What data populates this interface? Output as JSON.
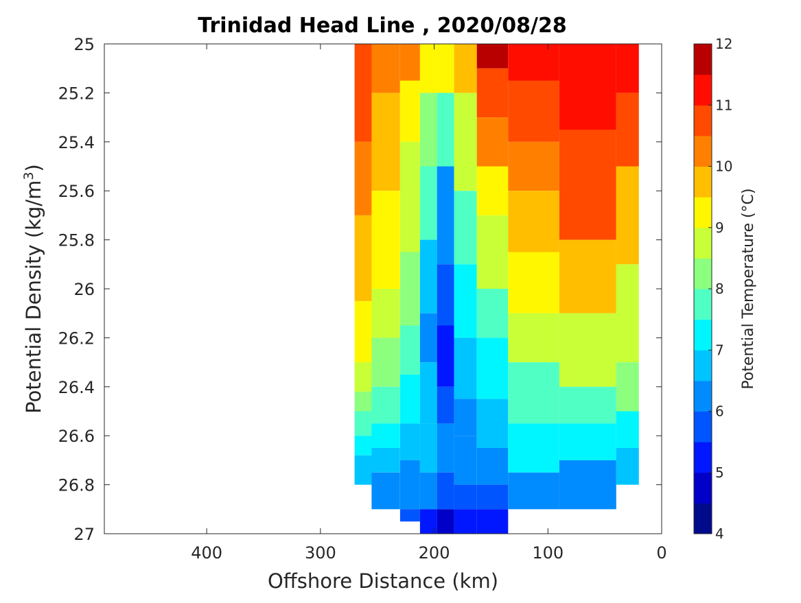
{
  "chart_data": {
    "type": "contour",
    "title": "Trinidad Head Line , 2020/08/28",
    "xlabel": "Offshore Distance (km)",
    "ylabel": "Potential Density (kg/m",
    "ylabel_sup": "3",
    "ylabel_close": ")",
    "xlim": [
      490,
      0
    ],
    "x_reversed": true,
    "ylim": [
      25,
      27
    ],
    "y_reversed": true,
    "x_ticks": [
      400,
      300,
      200,
      100,
      0
    ],
    "y_ticks": [
      25,
      25.2,
      25.4,
      25.6,
      25.8,
      26,
      26.2,
      26.4,
      26.6,
      26.8,
      27
    ],
    "y_tick_labels": [
      "25",
      "25.2",
      "25.4",
      "25.6",
      "25.8",
      "26",
      "26.2",
      "26.4",
      "26.6",
      "26.8",
      "27"
    ],
    "colorbar": {
      "label": "Potential Temperature (°C)",
      "min": 4,
      "max": 12,
      "step": 0.5,
      "ticks": [
        4,
        5,
        6,
        7,
        8,
        9,
        10,
        11,
        12
      ],
      "colors": [
        "#000b8c",
        "#0000c8",
        "#0017ff",
        "#0055ff",
        "#008cff",
        "#00c4ff",
        "#00f6ff",
        "#50ffc4",
        "#8cff7f",
        "#c8ff37",
        "#fff700",
        "#ffbe00",
        "#ff8000",
        "#ff4a00",
        "#ff0e00",
        "#b90000"
      ]
    },
    "grid": false,
    "sections": [
      {
        "x": 270,
        "segments": [
          [
            25.0,
            25.4,
            10.8
          ],
          [
            25.4,
            25.7,
            10.2
          ],
          [
            25.7,
            26.05,
            9.7
          ],
          [
            26.05,
            26.3,
            9.2
          ],
          [
            26.3,
            26.42,
            8.8
          ],
          [
            26.42,
            26.5,
            8.2
          ],
          [
            26.5,
            26.6,
            7.7
          ],
          [
            26.6,
            26.68,
            7.2
          ],
          [
            26.68,
            26.8,
            6.6
          ]
        ]
      },
      {
        "x": 240,
        "segments": [
          [
            25.0,
            25.2,
            10.3
          ],
          [
            25.2,
            25.6,
            9.8
          ],
          [
            25.6,
            26.0,
            9.2
          ],
          [
            26.0,
            26.2,
            8.8
          ],
          [
            26.2,
            26.4,
            8.2
          ],
          [
            26.4,
            26.55,
            7.6
          ],
          [
            26.55,
            26.65,
            7.2
          ],
          [
            26.65,
            26.75,
            6.7
          ],
          [
            26.75,
            26.9,
            6.2
          ]
        ]
      },
      {
        "x": 220,
        "segments": [
          [
            25.0,
            25.15,
            10.0
          ],
          [
            25.15,
            25.4,
            9.4
          ],
          [
            25.4,
            25.85,
            8.8
          ],
          [
            25.85,
            26.15,
            8.2
          ],
          [
            26.15,
            26.35,
            7.8
          ],
          [
            26.35,
            26.55,
            7.3
          ],
          [
            26.55,
            26.7,
            6.8
          ],
          [
            26.7,
            26.9,
            6.3
          ],
          [
            26.9,
            26.95,
            5.6
          ]
        ]
      },
      {
        "x": 205,
        "segments": [
          [
            25.0,
            25.2,
            9.2
          ],
          [
            25.2,
            25.5,
            8.3
          ],
          [
            25.5,
            25.8,
            7.6
          ],
          [
            25.8,
            26.1,
            6.8
          ],
          [
            26.1,
            26.3,
            6.3
          ],
          [
            26.3,
            26.55,
            6.8
          ],
          [
            26.55,
            26.75,
            6.6
          ],
          [
            26.75,
            26.9,
            6.0
          ],
          [
            26.9,
            27.0,
            5.3
          ]
        ]
      },
      {
        "x": 190,
        "segments": [
          [
            25.0,
            25.2,
            9.0
          ],
          [
            25.2,
            25.5,
            7.8
          ],
          [
            25.5,
            25.9,
            6.4
          ],
          [
            25.9,
            26.15,
            5.8
          ],
          [
            26.15,
            26.4,
            5.2
          ],
          [
            26.4,
            26.55,
            5.8
          ],
          [
            26.55,
            26.75,
            6.3
          ],
          [
            26.75,
            26.9,
            5.8
          ],
          [
            26.9,
            27.0,
            4.8
          ]
        ]
      },
      {
        "x": 175,
        "segments": [
          [
            25.0,
            25.2,
            9.6
          ],
          [
            25.2,
            25.6,
            8.8
          ],
          [
            25.6,
            25.9,
            7.8
          ],
          [
            25.9,
            26.2,
            7.2
          ],
          [
            26.2,
            26.45,
            6.6
          ],
          [
            26.45,
            26.6,
            6.1
          ],
          [
            26.6,
            26.8,
            6.3
          ],
          [
            26.8,
            26.9,
            5.8
          ],
          [
            26.9,
            27.0,
            5.1
          ]
        ]
      },
      {
        "x": 150,
        "segments": [
          [
            25.0,
            25.1,
            11.6
          ],
          [
            25.1,
            25.3,
            10.9
          ],
          [
            25.3,
            25.5,
            10.3
          ],
          [
            25.5,
            25.7,
            9.3
          ],
          [
            25.7,
            26.0,
            8.6
          ],
          [
            26.0,
            26.2,
            7.7
          ],
          [
            26.2,
            26.45,
            7.2
          ],
          [
            26.45,
            26.65,
            6.8
          ],
          [
            26.65,
            26.8,
            6.3
          ],
          [
            26.8,
            26.9,
            5.8
          ],
          [
            26.9,
            27.0,
            5.2
          ]
        ]
      },
      {
        "x": 120,
        "segments": [
          [
            25.0,
            25.15,
            11.3
          ],
          [
            25.15,
            25.4,
            10.9
          ],
          [
            25.4,
            25.6,
            10.3
          ],
          [
            25.6,
            25.85,
            9.7
          ],
          [
            25.85,
            26.1,
            9.3
          ],
          [
            26.1,
            26.3,
            8.7
          ],
          [
            26.3,
            26.55,
            7.8
          ],
          [
            26.55,
            26.75,
            7.2
          ],
          [
            26.75,
            26.9,
            6.3
          ]
        ]
      },
      {
        "x": 60,
        "segments": [
          [
            25.0,
            25.35,
            11.2
          ],
          [
            25.35,
            25.8,
            10.6
          ],
          [
            25.8,
            26.1,
            9.8
          ],
          [
            26.1,
            26.4,
            8.7
          ],
          [
            26.4,
            26.55,
            7.8
          ],
          [
            26.55,
            26.7,
            7.3
          ],
          [
            26.7,
            26.9,
            6.3
          ]
        ]
      },
      {
        "x": 20,
        "segments": [
          [
            25.0,
            25.2,
            11.2
          ],
          [
            25.2,
            25.5,
            10.6
          ],
          [
            25.5,
            25.9,
            9.8
          ],
          [
            25.9,
            26.3,
            8.6
          ],
          [
            26.3,
            26.5,
            8.2
          ],
          [
            26.5,
            26.65,
            7.4
          ],
          [
            26.65,
            26.8,
            6.8
          ]
        ]
      }
    ]
  }
}
